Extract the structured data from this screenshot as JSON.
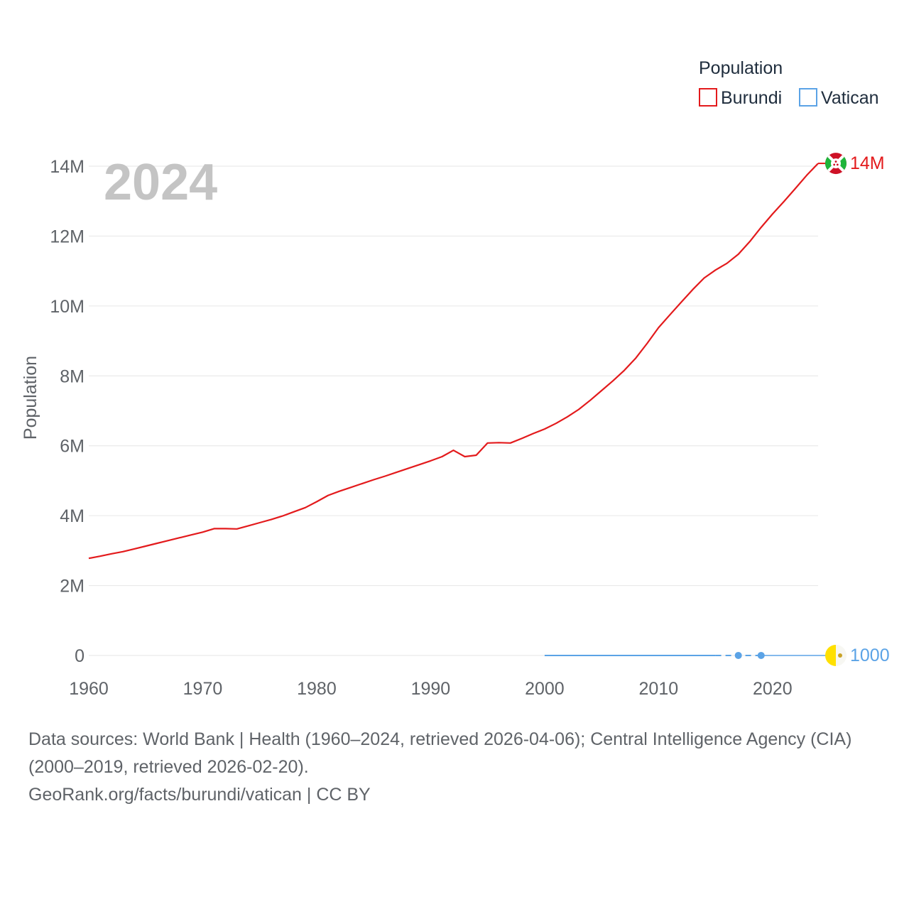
{
  "chart_data": {
    "type": "line",
    "year_label": "2024",
    "ylabel": "Population",
    "xlim": [
      1960,
      2024
    ],
    "ylim": [
      0,
      14000000
    ],
    "x_ticks": [
      {
        "value": 1960,
        "label": "1960"
      },
      {
        "value": 1970,
        "label": "1970"
      },
      {
        "value": 1980,
        "label": "1980"
      },
      {
        "value": 1990,
        "label": "1990"
      },
      {
        "value": 2000,
        "label": "2000"
      },
      {
        "value": 2010,
        "label": "2010"
      },
      {
        "value": 2020,
        "label": "2020"
      }
    ],
    "y_ticks": [
      {
        "value": 0,
        "label": "0"
      },
      {
        "value": 2000000,
        "label": "2M"
      },
      {
        "value": 4000000,
        "label": "4M"
      },
      {
        "value": 6000000,
        "label": "6M"
      },
      {
        "value": 8000000,
        "label": "8M"
      },
      {
        "value": 10000000,
        "label": "10M"
      },
      {
        "value": 12000000,
        "label": "12M"
      },
      {
        "value": 14000000,
        "label": "14M"
      }
    ],
    "legend": {
      "title": "Population",
      "position": "top-right",
      "entries": [
        {
          "name": "Burundi",
          "color": "#e31a1c"
        },
        {
          "name": "Vatican",
          "color": "#5ba3e6"
        }
      ]
    },
    "series": [
      {
        "name": "Burundi",
        "color": "#e31a1c",
        "end_label": "14M",
        "flag_icon": "burundi-flag-icon",
        "x": [
          1960,
          1961,
          1962,
          1963,
          1964,
          1965,
          1966,
          1967,
          1968,
          1969,
          1970,
          1971,
          1972,
          1973,
          1974,
          1975,
          1976,
          1977,
          1978,
          1979,
          1980,
          1981,
          1982,
          1983,
          1984,
          1985,
          1986,
          1987,
          1988,
          1989,
          1990,
          1991,
          1992,
          1993,
          1994,
          1995,
          1996,
          1997,
          1998,
          1999,
          2000,
          2001,
          2002,
          2003,
          2004,
          2005,
          2006,
          2007,
          2008,
          2009,
          2010,
          2011,
          2012,
          2013,
          2014,
          2015,
          2016,
          2017,
          2018,
          2019,
          2020,
          2021,
          2022,
          2023,
          2024
        ],
        "values": [
          2780000,
          2840000,
          2910000,
          2970000,
          3050000,
          3130000,
          3210000,
          3290000,
          3370000,
          3450000,
          3530000,
          3630000,
          3630000,
          3620000,
          3710000,
          3800000,
          3890000,
          3990000,
          4110000,
          4230000,
          4400000,
          4580000,
          4700000,
          4810000,
          4920000,
          5030000,
          5130000,
          5240000,
          5350000,
          5460000,
          5570000,
          5690000,
          5870000,
          5690000,
          5730000,
          6080000,
          6090000,
          6080000,
          6210000,
          6350000,
          6480000,
          6640000,
          6830000,
          7040000,
          7300000,
          7580000,
          7860000,
          8160000,
          8510000,
          8930000,
          9380000,
          9750000,
          10110000,
          10470000,
          10800000,
          11030000,
          11220000,
          11480000,
          11840000,
          12250000,
          12630000,
          12990000,
          13360000,
          13740000,
          14080000
        ]
      },
      {
        "name": "Vatican",
        "color": "#5ba3e6",
        "end_label": "1000",
        "flag_icon": "vatican-flag-icon",
        "x": [
          2000,
          2001,
          2002,
          2003,
          2004,
          2005,
          2006,
          2007,
          2008,
          2009,
          2010,
          2011,
          2012,
          2013,
          2014,
          2015,
          2016,
          2017,
          2018,
          2019,
          2020,
          2021,
          2022,
          2023,
          2024
        ],
        "values": [
          890,
          900,
          900,
          900,
          920,
          930,
          930,
          940,
          950,
          950,
          960,
          970,
          970,
          980,
          990,
          1000,
          1000,
          1000,
          1000,
          1000,
          1000,
          1000,
          1000,
          1000,
          1000
        ],
        "markers": [
          2017,
          2019
        ]
      }
    ]
  },
  "footer": {
    "line1": "Data sources: World Bank | Health (1960–2024, retrieved 2026-04-06); Central Intelligence Agency (CIA)",
    "line2": "(2000–2019, retrieved 2026-02-20).",
    "line3": "GeoRank.org/facts/burundi/vatican | CC BY"
  }
}
